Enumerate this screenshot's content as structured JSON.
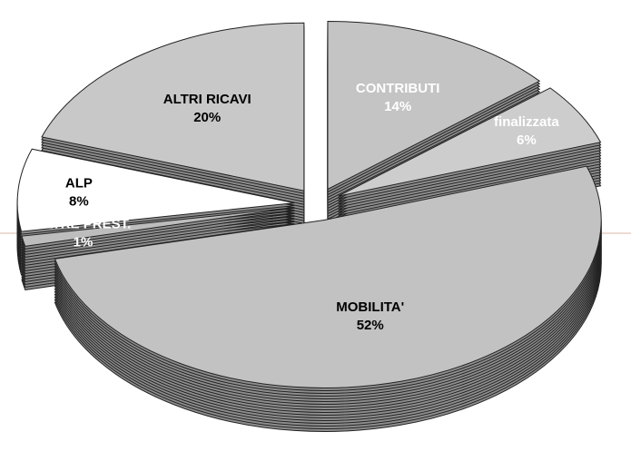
{
  "chart_data": {
    "type": "pie",
    "categories": [
      "CONTRIBUTI",
      "finalizzata",
      "MOBILITA'",
      "ALTRE PREST.",
      "ALP",
      "ALTRI RICAVI"
    ],
    "values": [
      14,
      6,
      52,
      1,
      8,
      20
    ],
    "value_labels": [
      "14%",
      "6%",
      "52%",
      "1%",
      "8%",
      "20%"
    ],
    "colors": [
      "#c4c4c4",
      "#cdcdcd",
      "#c2c2c2",
      "#bdbdbd",
      "#ffffff",
      "#c8c8c8"
    ],
    "label_colors": [
      "#ffffff",
      "#ffffff",
      "#000000",
      "#ffffff",
      "#000000",
      "#000000"
    ],
    "side_color": "#8e8e8e"
  }
}
